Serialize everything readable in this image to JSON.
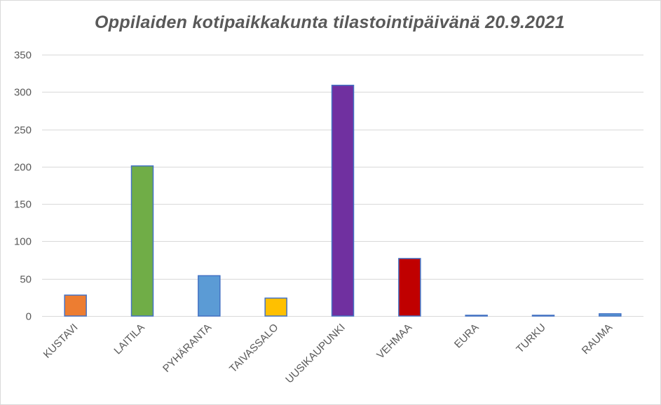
{
  "chart_data": {
    "type": "bar",
    "title": "Oppilaiden  kotipaikkakunta  tilastointipäivänä  20.9.2021",
    "xlabel": "",
    "ylabel": "",
    "categories": [
      "KUSTAVI",
      "LAITILA",
      "PYHÄRANTA",
      "TAIVASSALO",
      "UUSIKAUPUNKI",
      "VEHMAA",
      "EURA",
      "TURKU",
      "RAUMA"
    ],
    "values": [
      28,
      201,
      54,
      24,
      309,
      77,
      1,
      1,
      3
    ],
    "colors": [
      "#ed7d31",
      "#70ad47",
      "#5b9bd5",
      "#ffc000",
      "#7030a0",
      "#c00000",
      "#5b9bd5",
      "#5b9bd5",
      "#5b9bd5"
    ],
    "bar_outline": "#4472c4",
    "ylim": [
      0,
      350
    ],
    "yticks": [
      0,
      50,
      100,
      150,
      200,
      250,
      300,
      350
    ],
    "grid": true,
    "legend": "none"
  }
}
